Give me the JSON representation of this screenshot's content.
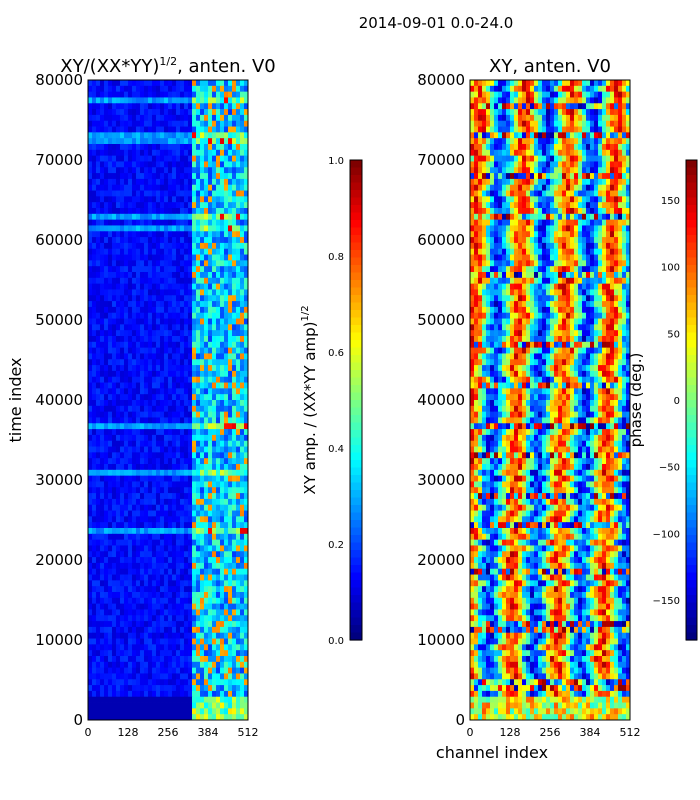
{
  "figure_title": "2014-09-01 0.0-24.0",
  "colormap": [
    "#00007f",
    "#0000ff",
    "#007fff",
    "#00ffff",
    "#7fff7f",
    "#ffff00",
    "#ff7f00",
    "#ff0000",
    "#7f0000"
  ],
  "chart_data": [
    {
      "type": "heatmap",
      "title": "XY/(XX*YY)",
      "title_exponent": "1/2",
      "title_suffix": ", anten. V0",
      "xlabel": "",
      "ylabel": "time index",
      "xlim": [
        0,
        512
      ],
      "ylim": [
        0,
        80000
      ],
      "x_ticks": [
        "0",
        "128",
        "256",
        "384",
        "512"
      ],
      "y_ticks": [
        "0",
        "10000",
        "20000",
        "30000",
        "40000",
        "50000",
        "60000",
        "70000",
        "80000"
      ],
      "colorbar": {
        "label": "XY amp. / (XX*YY amp)",
        "label_exponent": "1/2",
        "range": [
          0.0,
          1.0
        ],
        "ticks": [
          "0.0",
          "0.2",
          "0.4",
          "0.6",
          "0.8",
          "1.0"
        ]
      }
    },
    {
      "type": "heatmap",
      "title": "XY, anten. V0",
      "xlabel": "channel index",
      "ylabel": "",
      "xlim": [
        0,
        512
      ],
      "ylim": [
        0,
        80000
      ],
      "x_ticks": [
        "0",
        "128",
        "256",
        "384",
        "512"
      ],
      "y_ticks": [
        "0",
        "10000",
        "20000",
        "30000",
        "40000",
        "50000",
        "60000",
        "70000",
        "80000"
      ],
      "colorbar": {
        "label": "phase (deg.)",
        "range": [
          -180,
          180
        ],
        "ticks": [
          "−150",
          "−100",
          "−50",
          "0",
          "50",
          "100",
          "150"
        ]
      }
    }
  ]
}
